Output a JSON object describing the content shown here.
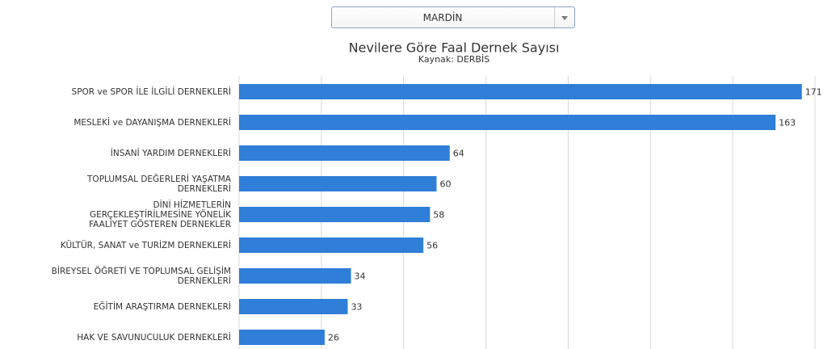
{
  "dropdown": "MARDİN",
  "chart_data": {
    "type": "bar",
    "orientation": "horizontal",
    "title": "Nevilere Göre Faal Dernek Sayısı",
    "subtitle": "Kaynak: DERBİS",
    "categories": [
      "SPOR ve SPOR İLE İLGİLİ DERNEKLERİ",
      "MESLEKİ ve DAYANIŞMA DERNEKLERİ",
      "İNSANİ YARDIM DERNEKLERİ",
      "TOPLUMSAL DEĞERLERİ YAŞATMA\nDERNEKLERİ",
      "DİNİ HİZMETLERİN\nGERÇEKLEŞTİRİLMESİNE YÖNELİK\nFAALİYET GÖSTEREN DERNEKLER",
      "KÜLTÜR, SANAT ve TURİZM DERNEKLERİ",
      "BİREYSEL ÖĞRETİ VE TOPLUMSAL GELİŞİM\nDERNEKLERİ",
      "EĞİTİM ARAŞTIRMA DERNEKLERİ",
      "HAK VE SAVUNUCULUK DERNEKLERİ"
    ],
    "values": [
      171,
      163,
      64,
      60,
      58,
      56,
      34,
      33,
      26
    ],
    "color": "#2f7ed8",
    "xlim": [
      0,
      175
    ],
    "xticks": [
      0,
      25,
      50,
      75,
      100,
      125,
      150,
      175
    ],
    "grid": true
  }
}
